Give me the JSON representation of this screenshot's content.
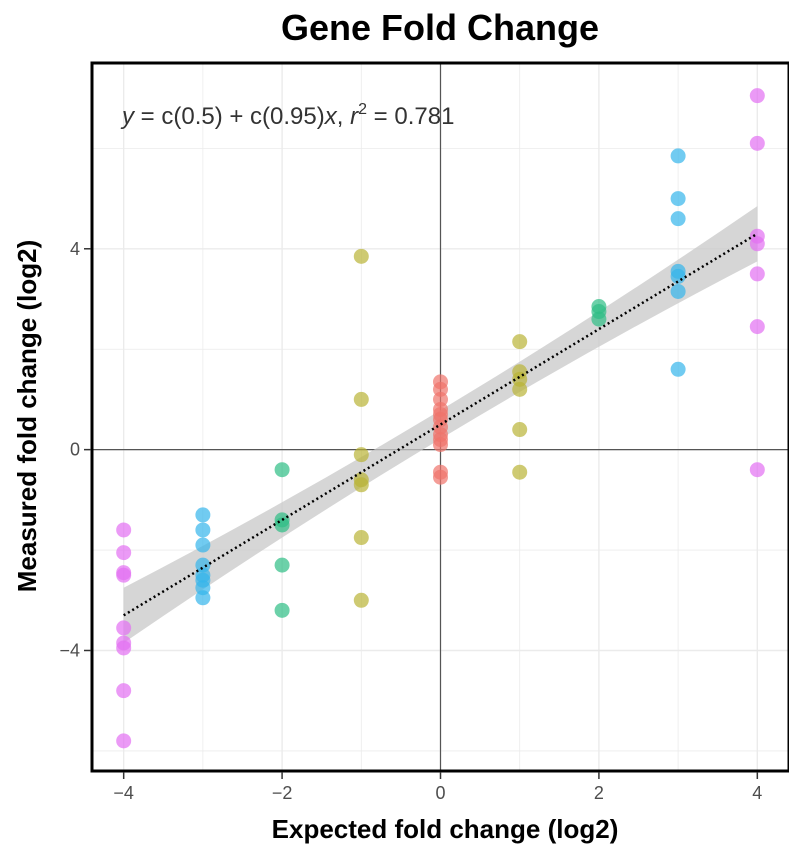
{
  "chart_data": {
    "type": "scatter",
    "title": "Gene Fold Change",
    "xlabel": "Expected fold change (log2)",
    "ylabel": "Measured fold change (log2)",
    "xlim": [
      -4.4,
      4.4
    ],
    "ylim": [
      -6.4,
      7.7
    ],
    "x_ticks": [
      -4,
      -2,
      0,
      2,
      4
    ],
    "y_ticks": [
      -4,
      0,
      4
    ],
    "x_tick_labels": [
      "−4",
      "−2",
      "0",
      "2",
      "4"
    ],
    "y_tick_labels": [
      "−4",
      "0",
      "4"
    ],
    "grid": true,
    "legend": "none",
    "annotation": {
      "y_var": "y",
      "equation": " = c(0.5) + c(0.95)",
      "x_var": "x",
      "sep": ", ",
      "r_var": "r",
      "r_exp": "2",
      "r_value": " = 0.781"
    },
    "fit": {
      "intercept": 0.5,
      "slope": 0.95,
      "x_range": [
        -4,
        4
      ],
      "ci_left": [
        -2.75,
        -3.85
      ],
      "ci_mid": [
        0.72,
        0.28
      ],
      "ci_right": [
        4.85,
        3.75
      ]
    },
    "colors": {
      "x_-4": "#e36ff2",
      "x_-3": "#35b5eb",
      "x_-2": "#2dbd85",
      "x_-1": "#b9b436",
      "x_0": "#f0736b",
      "x_1": "#b9b436",
      "x_2": "#2dbd85",
      "x_3": "#35b5eb",
      "x_4": "#e36ff2",
      "ci_band": "#c8c8c8",
      "fit_line": "#000000"
    },
    "series": [
      {
        "x": -4,
        "y": [
          -1.6,
          -2.05,
          -2.45,
          -2.5,
          -3.55,
          -3.85,
          -3.95,
          -4.8,
          -5.8
        ]
      },
      {
        "x": -3,
        "y": [
          -1.3,
          -1.6,
          -1.9,
          -2.3,
          -2.5,
          -2.6,
          -2.75,
          -2.95
        ]
      },
      {
        "x": -2,
        "y": [
          -0.4,
          -1.4,
          -1.5,
          -2.3,
          -3.2
        ]
      },
      {
        "x": -1,
        "y": [
          3.85,
          1.0,
          -0.1,
          -0.6,
          -0.7,
          -1.75,
          -3.0
        ]
      },
      {
        "x": 0,
        "y": [
          1.35,
          1.2,
          1.0,
          0.8,
          0.7,
          0.6,
          0.45,
          0.3,
          0.2,
          0.1,
          -0.45,
          -0.55
        ]
      },
      {
        "x": 1,
        "y": [
          2.15,
          1.55,
          1.4,
          1.2,
          0.4,
          -0.45
        ]
      },
      {
        "x": 2,
        "y": [
          2.85,
          2.75,
          2.6
        ]
      },
      {
        "x": 3,
        "y": [
          5.85,
          5.0,
          4.6,
          3.55,
          3.45,
          3.15,
          1.6
        ]
      },
      {
        "x": 4,
        "y": [
          7.05,
          6.1,
          4.25,
          4.1,
          3.5,
          2.45,
          -0.4
        ]
      }
    ]
  }
}
